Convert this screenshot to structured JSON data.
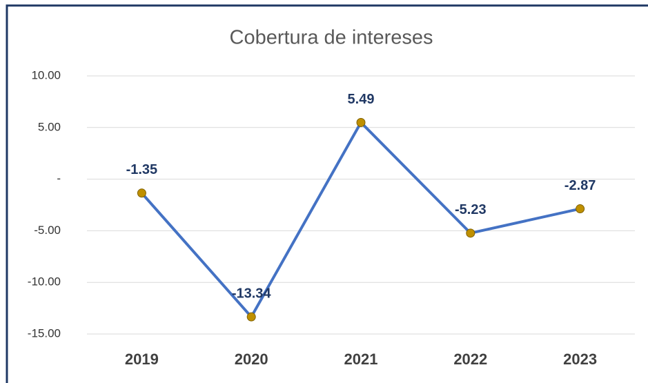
{
  "chart_data": {
    "type": "line",
    "title": "Cobertura de intereses",
    "categories": [
      "2019",
      "2020",
      "2021",
      "2022",
      "2023"
    ],
    "values": [
      -1.35,
      -13.34,
      5.49,
      -5.23,
      -2.87
    ],
    "color": "#4472c4",
    "marker_color": "#bf9000",
    "ylim": [
      -15,
      10
    ],
    "yticks": [
      {
        "value": 10,
        "label": "10.00"
      },
      {
        "value": 5,
        "label": "5.00"
      },
      {
        "value": 0,
        "label": "-"
      },
      {
        "value": -5,
        "label": "-5.00"
      },
      {
        "value": -10,
        "label": "-10.00"
      },
      {
        "value": -15,
        "label": "-15.00"
      }
    ],
    "grid": true
  }
}
